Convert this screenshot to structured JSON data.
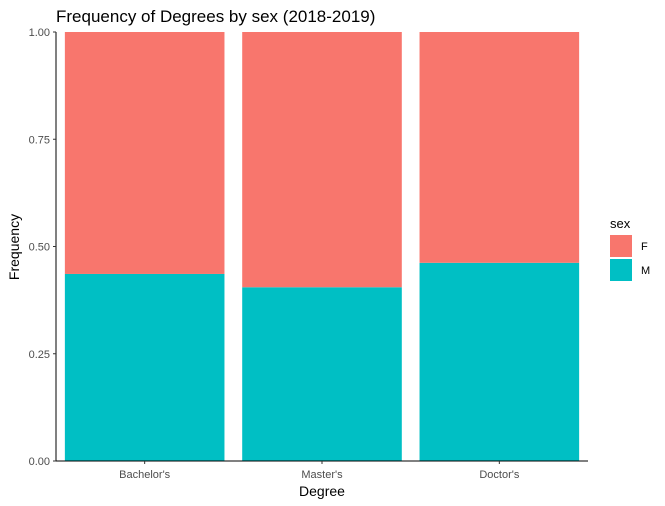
{
  "chart_data": {
    "type": "bar",
    "stacked": true,
    "title": "Frequency of Degrees by sex (2018-2019)",
    "xlabel": "Degree",
    "ylabel": "Frequency",
    "categories": [
      "Bachelor's",
      "Master's",
      "Doctor's"
    ],
    "ylim": [
      0,
      1
    ],
    "yticks": [
      "0.00",
      "0.25",
      "0.50",
      "0.75",
      "1.00"
    ],
    "series": [
      {
        "name": "M",
        "color": "#00BFC4",
        "values": [
          0.436,
          0.405,
          0.462
        ]
      },
      {
        "name": "F",
        "color": "#F8766D",
        "values": [
          0.564,
          0.595,
          0.538
        ]
      }
    ],
    "legend": {
      "title": "sex",
      "position": "right",
      "entries": [
        "F",
        "M"
      ]
    },
    "grid": false
  }
}
